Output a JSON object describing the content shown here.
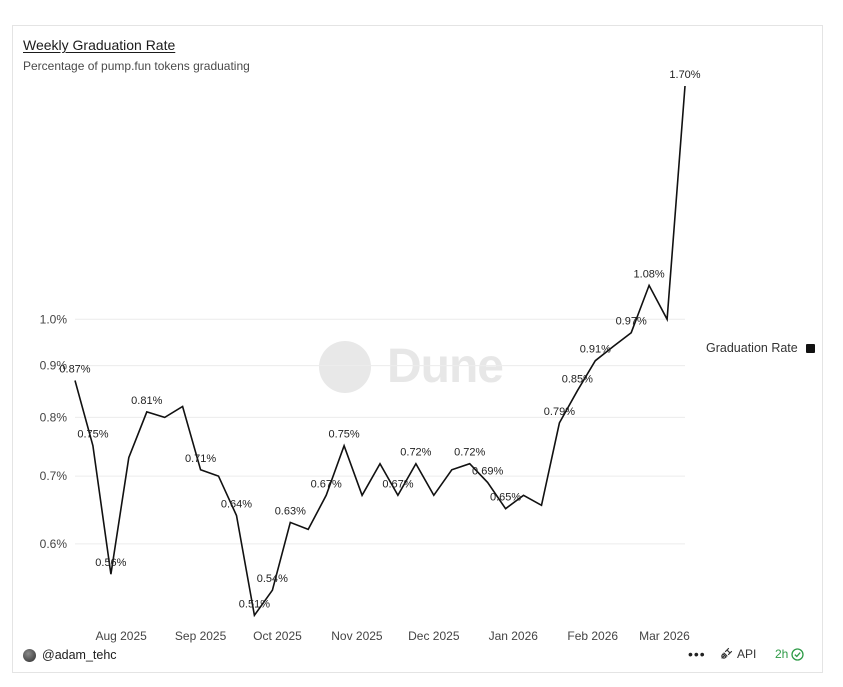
{
  "header": {
    "title": "Weekly Graduation Rate",
    "subtitle": "Percentage of pump.fun tokens graduating"
  },
  "legend": {
    "label": "Graduation Rate"
  },
  "footer": {
    "author": "@adam_tehc",
    "more_label": "•••",
    "api_label": "API",
    "timer_label": "2h"
  },
  "watermark": {
    "text": "Dune"
  },
  "colors": {
    "line": "#111111",
    "grid": "#ececec",
    "timer": "#2e9b47"
  },
  "chart_data": {
    "type": "line",
    "title": "Weekly Graduation Rate",
    "subtitle": "Percentage of pump.fun tokens graduating",
    "xlabel": "",
    "ylabel": "",
    "y_scale": "log",
    "ylim": [
      0.5,
      1.7
    ],
    "y_ticks": [
      {
        "value": 0.6,
        "label": "0.6%"
      },
      {
        "value": 0.7,
        "label": "0.7%"
      },
      {
        "value": 0.8,
        "label": "0.8%"
      },
      {
        "value": 0.9,
        "label": "0.9%"
      },
      {
        "value": 1.0,
        "label": "1.0%"
      }
    ],
    "x_ticks": [
      {
        "date": "2025-08-01",
        "label": "Aug 2025"
      },
      {
        "date": "2025-09-01",
        "label": "Sep 2025"
      },
      {
        "date": "2025-10-01",
        "label": "Oct 2025"
      },
      {
        "date": "2025-11-01",
        "label": "Nov 2025"
      },
      {
        "date": "2025-12-01",
        "label": "Dec 2025"
      },
      {
        "date": "2026-01-01",
        "label": "Jan 2026"
      },
      {
        "date": "2026-02-01",
        "label": "Feb 2026"
      },
      {
        "date": "2026-03-01",
        "label": "Mar 2026"
      }
    ],
    "grid": true,
    "legend_position": "right",
    "series": [
      {
        "name": "Graduation Rate",
        "points": [
          {
            "x": "2025-07-14",
            "y": 0.87,
            "label": "0.87%"
          },
          {
            "x": "2025-07-21",
            "y": 0.75,
            "label": "0.75%"
          },
          {
            "x": "2025-07-28",
            "y": 0.56,
            "label": "0.56%"
          },
          {
            "x": "2025-08-04",
            "y": 0.73
          },
          {
            "x": "2025-08-11",
            "y": 0.81,
            "label": "0.81%"
          },
          {
            "x": "2025-08-18",
            "y": 0.8
          },
          {
            "x": "2025-08-25",
            "y": 0.82
          },
          {
            "x": "2025-09-01",
            "y": 0.71,
            "label": "0.71%"
          },
          {
            "x": "2025-09-08",
            "y": 0.7
          },
          {
            "x": "2025-09-15",
            "y": 0.64,
            "label": "0.64%"
          },
          {
            "x": "2025-09-22",
            "y": 0.51,
            "label": "0.51%"
          },
          {
            "x": "2025-09-29",
            "y": 0.54,
            "label": "0.54%"
          },
          {
            "x": "2025-10-06",
            "y": 0.63,
            "label": "0.63%"
          },
          {
            "x": "2025-10-13",
            "y": 0.62
          },
          {
            "x": "2025-10-20",
            "y": 0.67,
            "label": "0.67%"
          },
          {
            "x": "2025-10-27",
            "y": 0.75,
            "label": "0.75%"
          },
          {
            "x": "2025-11-03",
            "y": 0.67
          },
          {
            "x": "2025-11-10",
            "y": 0.72
          },
          {
            "x": "2025-11-17",
            "y": 0.67,
            "label": "0.67%"
          },
          {
            "x": "2025-11-24",
            "y": 0.72,
            "label": "0.72%"
          },
          {
            "x": "2025-12-01",
            "y": 0.67
          },
          {
            "x": "2025-12-08",
            "y": 0.71
          },
          {
            "x": "2025-12-15",
            "y": 0.72,
            "label": "0.72%"
          },
          {
            "x": "2025-12-22",
            "y": 0.69,
            "label": "0.69%"
          },
          {
            "x": "2025-12-29",
            "y": 0.65,
            "label": "0.65%"
          },
          {
            "x": "2026-01-05",
            "y": 0.67
          },
          {
            "x": "2026-01-12",
            "y": 0.655
          },
          {
            "x": "2026-01-19",
            "y": 0.79,
            "label": "0.79%"
          },
          {
            "x": "2026-01-26",
            "y": 0.85,
            "label": "0.85%"
          },
          {
            "x": "2026-02-02",
            "y": 0.91,
            "label": "0.91%"
          },
          {
            "x": "2026-02-09",
            "y": 0.94
          },
          {
            "x": "2026-02-16",
            "y": 0.97,
            "label": "0.97%"
          },
          {
            "x": "2026-02-23",
            "y": 1.08,
            "label": "1.08%"
          },
          {
            "x": "2026-03-02",
            "y": 1.0
          },
          {
            "x": "2026-03-09",
            "y": 1.7,
            "label": "1.70%"
          }
        ]
      }
    ]
  }
}
